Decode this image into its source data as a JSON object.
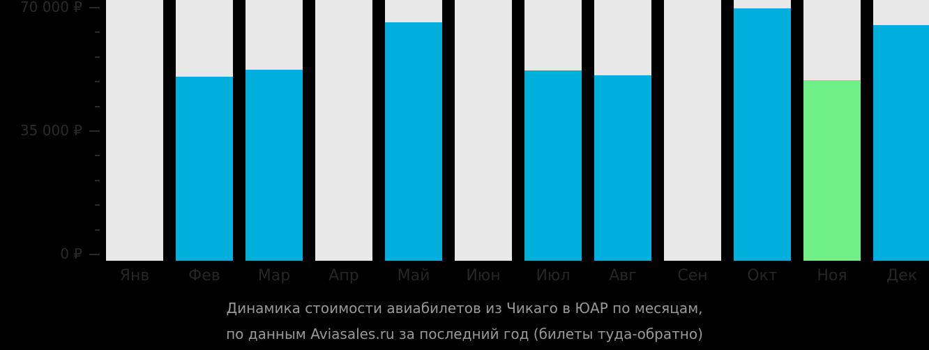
{
  "chart_data": {
    "type": "bar",
    "title": "Динамика стоимости авиабилетов из Чикаго в ЮАР по месяцам, по данным Aviasales.ru за последний год (билеты туда-обратно)",
    "xlabel": "",
    "ylabel": "",
    "ylim": [
      0,
      70000
    ],
    "yticks": [
      "0 ₽",
      "35 000 ₽",
      "70 000 ₽"
    ],
    "categories": [
      "Янв",
      "Фев",
      "Мар",
      "Апр",
      "Май",
      "Июн",
      "Июл",
      "Авг",
      "Сен",
      "Окт",
      "Ноя",
      "Дек"
    ],
    "values": [
      null,
      50400,
      52400,
      null,
      65800,
      null,
      52200,
      50800,
      null,
      69800,
      49400,
      65000
    ],
    "colors": [
      "#00b0dc",
      "#00b0dc",
      "#00b0dc",
      "#00b0dc",
      "#00b0dc",
      "#00b0dc",
      "#00b0dc",
      "#00b0dc",
      "#00b0dc",
      "#00b0dc",
      "#6ef087",
      "#00b0dc"
    ],
    "highlight": {
      "month": "Ноя",
      "color": "#6ef087",
      "note": "cheapest month"
    },
    "background_bar_color": "#e8e8e8",
    "grid": false,
    "legend": null
  },
  "caption": {
    "line1": "Динамика стоимости авиабилетов из Чикаго в ЮАР по месяцам,",
    "line2": "по данным Aviasales.ru за последний год (билеты туда-обратно)"
  }
}
